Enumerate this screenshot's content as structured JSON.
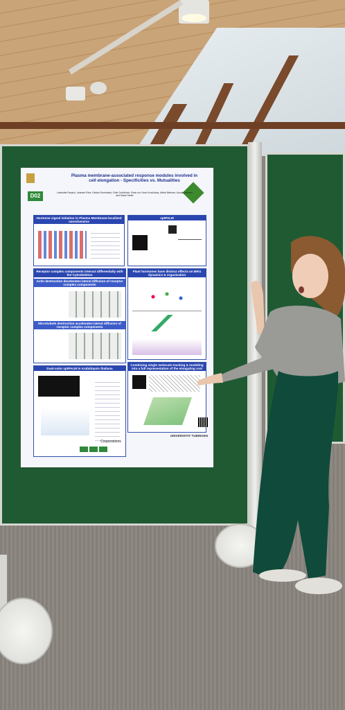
{
  "poster": {
    "id_badge": "D02",
    "title": "Plasma membrane-associated response modules involved in cell elongation - Specificities vs. Mutualities",
    "authors": "Luiselotte Rausch, Leander Rohr, Fabian Ornenbach, Ruth Großeholz, Svein zur Oven-Krockhaus, Alfred Meixner, Ursula Kummer and Klaus Harter",
    "sections": {
      "hormone_header": "Hormone signal initiation in Plasma Membrane-localized nanodomains",
      "sptpalm_header": "sptPALM",
      "receptor_header": "Receptor complex components interact differentially with the Cytoskeleton",
      "actin_header": "Actin destruction decelerates lateral diffusion of receptor complex components",
      "microtubule_header": "Microtubule destruction accelerates lateral diffusion of receptor complex components",
      "hormones_effect_header": "Plant hormones have distinct effects on BRI1 dynamics & organization",
      "dualcolor_header": "Dual-color sptPALM in Arabidopsis thaliana",
      "modeling_header": "Combining single molecule tracking & modeling into a full representation of the elongating root",
      "cooperations": "Cooperations",
      "university": "UNIVERSITAT TUBINGEN"
    }
  },
  "colors": {
    "board": "#1f5a33",
    "poster_header": "#2a46b0",
    "badge": "#2e8a3a"
  }
}
